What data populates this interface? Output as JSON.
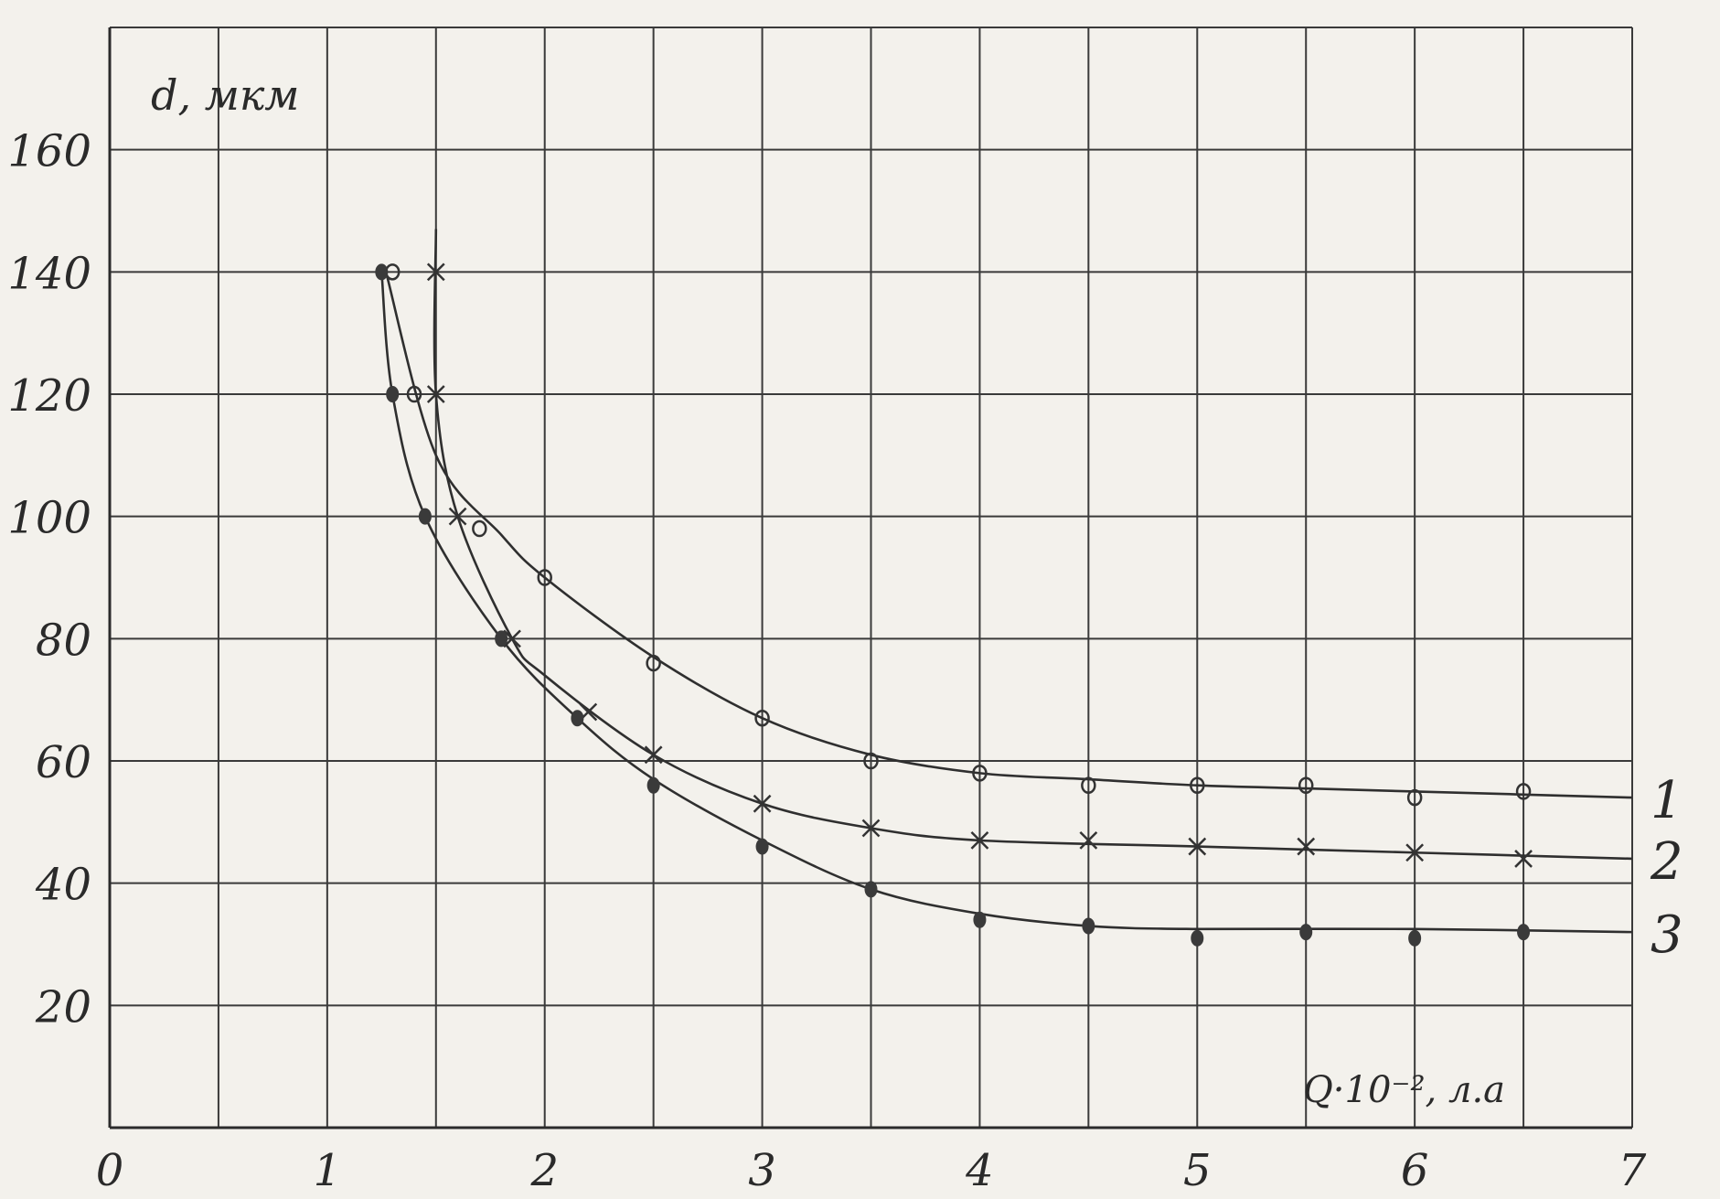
{
  "chart_data": {
    "type": "line",
    "ylabel": "d, мкм",
    "xlabel": "Q·10⁻², л.а",
    "xlim": [
      0,
      7
    ],
    "ylim": [
      0,
      180
    ],
    "x_ticks": [
      "0",
      "1",
      "2",
      "3",
      "4",
      "5",
      "6",
      "7"
    ],
    "y_ticks": [
      "20",
      "40",
      "60",
      "80",
      "100",
      "120",
      "140",
      "160"
    ],
    "y_tick_values": [
      20,
      40,
      60,
      80,
      100,
      120,
      140,
      160
    ],
    "grid": true,
    "series": [
      {
        "name": "1",
        "marker": "circle",
        "points": [
          [
            1.3,
            140
          ],
          [
            1.4,
            120
          ],
          [
            1.7,
            98
          ],
          [
            2.0,
            90
          ],
          [
            2.5,
            76
          ],
          [
            3.0,
            67
          ],
          [
            3.5,
            60
          ],
          [
            4.0,
            58
          ],
          [
            4.5,
            56
          ],
          [
            5.0,
            56
          ],
          [
            5.5,
            56
          ],
          [
            6.0,
            54
          ],
          [
            6.5,
            55
          ]
        ],
        "curve": [
          [
            1.27,
            140
          ],
          [
            1.5,
            110
          ],
          [
            1.8,
            97
          ],
          [
            2.0,
            90
          ],
          [
            2.5,
            77
          ],
          [
            3.0,
            67
          ],
          [
            3.5,
            61
          ],
          [
            4.0,
            58
          ],
          [
            4.5,
            57
          ],
          [
            5.0,
            56
          ],
          [
            5.5,
            55.5
          ],
          [
            6.0,
            55
          ],
          [
            7.0,
            54
          ]
        ]
      },
      {
        "name": "2",
        "marker": "cross",
        "points": [
          [
            1.5,
            140
          ],
          [
            1.5,
            120
          ],
          [
            1.6,
            100
          ],
          [
            1.85,
            80
          ],
          [
            2.2,
            68
          ],
          [
            2.5,
            61
          ],
          [
            3.0,
            53
          ],
          [
            3.5,
            49
          ],
          [
            4.0,
            47
          ],
          [
            4.5,
            47
          ],
          [
            5.0,
            46
          ],
          [
            5.5,
            46
          ],
          [
            6.0,
            45
          ],
          [
            6.5,
            44
          ]
        ],
        "curve": [
          [
            1.5,
            147
          ],
          [
            1.5,
            120
          ],
          [
            1.6,
            100
          ],
          [
            1.85,
            80
          ],
          [
            2.0,
            74
          ],
          [
            2.5,
            61
          ],
          [
            3.0,
            53
          ],
          [
            3.5,
            49
          ],
          [
            4.0,
            47
          ],
          [
            5.0,
            46
          ],
          [
            6.0,
            45
          ],
          [
            7.0,
            44
          ]
        ]
      },
      {
        "name": "3",
        "marker": "dot",
        "points": [
          [
            1.25,
            140
          ],
          [
            1.3,
            120
          ],
          [
            1.45,
            100
          ],
          [
            1.8,
            80
          ],
          [
            2.15,
            67
          ],
          [
            2.5,
            56
          ],
          [
            3.0,
            46
          ],
          [
            3.5,
            39
          ],
          [
            4.0,
            34
          ],
          [
            4.5,
            33
          ],
          [
            5.0,
            31
          ],
          [
            5.5,
            32
          ],
          [
            6.0,
            31
          ],
          [
            6.5,
            32
          ]
        ],
        "curve": [
          [
            1.25,
            140
          ],
          [
            1.3,
            120
          ],
          [
            1.45,
            100
          ],
          [
            1.8,
            80
          ],
          [
            2.15,
            67
          ],
          [
            2.5,
            57
          ],
          [
            3.0,
            47
          ],
          [
            3.5,
            39
          ],
          [
            4.0,
            35
          ],
          [
            4.5,
            33
          ],
          [
            5.0,
            32.5
          ],
          [
            6.0,
            32.5
          ],
          [
            7.0,
            32
          ]
        ]
      }
    ]
  }
}
